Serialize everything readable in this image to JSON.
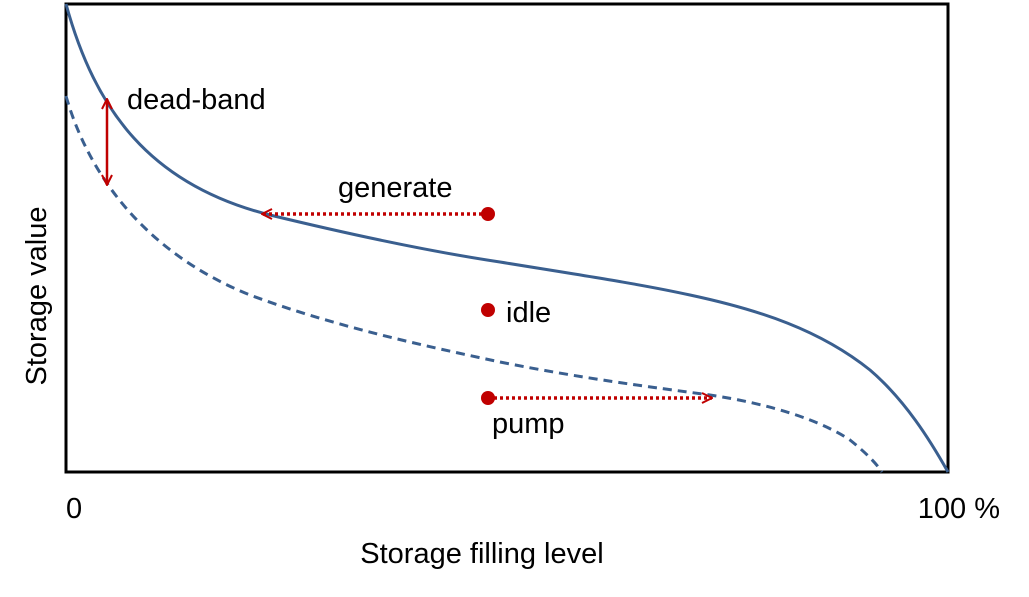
{
  "axes": {
    "x_label": "Storage filling level",
    "y_label": "Storage value",
    "x_tick_start": "0",
    "x_tick_end": "100 %"
  },
  "annotations": {
    "dead_band": "dead-band",
    "generate": "generate",
    "idle": "idle",
    "pump": "pump"
  },
  "colors": {
    "curve": "#3a5f8f",
    "accent": "#c00000",
    "frame": "#000000"
  }
}
